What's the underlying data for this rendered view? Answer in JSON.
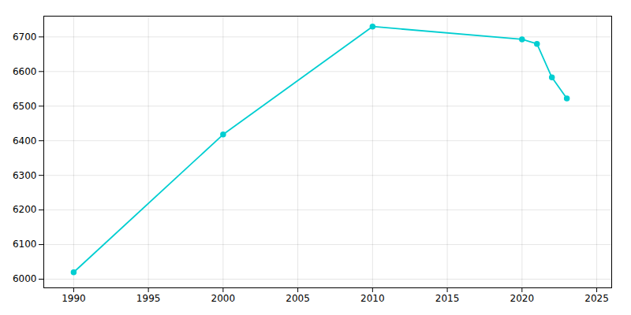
{
  "chart_data": {
    "type": "line",
    "x": [
      1990,
      2000,
      2010,
      2020,
      2021,
      2022,
      2023
    ],
    "values": [
      6020,
      6418,
      6730,
      6693,
      6680,
      6583,
      6522
    ],
    "color": "#00CED1",
    "marker": "circle",
    "xlim": [
      1988,
      2026
    ],
    "ylim": [
      5975,
      6760
    ],
    "xticks": [
      1990,
      1995,
      2000,
      2005,
      2010,
      2015,
      2020,
      2025
    ],
    "yticks": [
      6000,
      6100,
      6200,
      6300,
      6400,
      6500,
      6600,
      6700
    ],
    "grid": true
  }
}
